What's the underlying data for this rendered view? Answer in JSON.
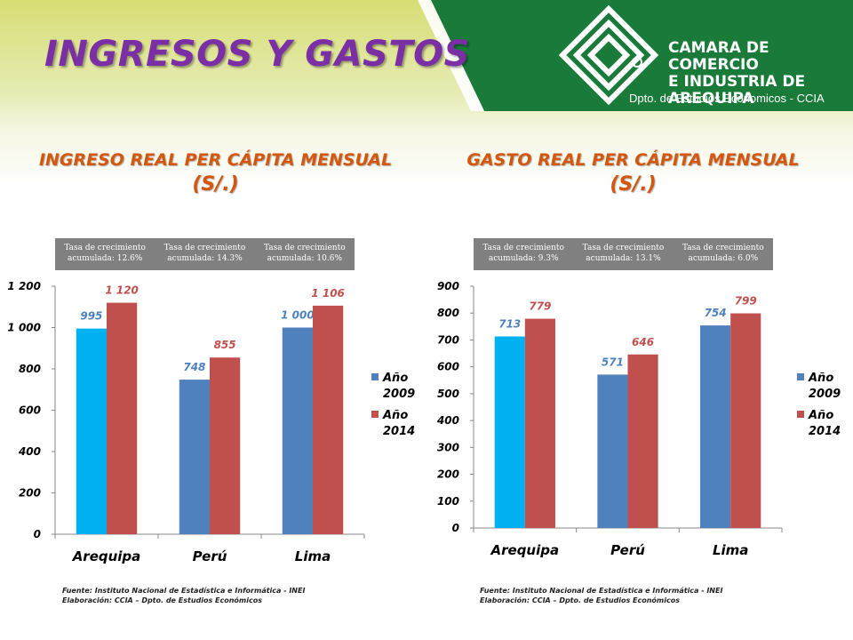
{
  "header": {
    "title": "INGRESOS Y GASTOS",
    "logo_line1": "CAMARA DE COMERCIO",
    "logo_line2": "E INDUSTRIA DE",
    "logo_line3": "AREQUIPA",
    "logo_sub": "Dpto. de Estudios Economicos - CCIA"
  },
  "colors": {
    "title": "#7b2fa5",
    "chart_title": "#d4570d",
    "arequipa": "#00b0f0",
    "year2009": "#4f81bd",
    "year2014": "#c0504d",
    "green": "#1a7a3a"
  },
  "charts": [
    {
      "title": "INGRESO REAL PER CÁPITA MENSUAL",
      "unit": "(S/.)",
      "rates": [
        "Tasa de crecimiento acumulada: 12.6%",
        "Tasa de crecimiento acumulada: 14.3%",
        "Tasa de crecimiento acumulada: 10.6%"
      ],
      "source_line1": "Fuente: Instituto Nacional de Estadística e Informática - INEI",
      "source_line2": "Elaboración: CCIA – Dpto. de Estudios Económicos"
    },
    {
      "title": "GASTO REAL PER CÁPITA MENSUAL",
      "unit": "(S/.)",
      "rates": [
        "Tasa de crecimiento acumulada: 9.3%",
        "Tasa de crecimiento acumulada: 13.1%",
        "Tasa de crecimiento acumulada: 6.0%"
      ],
      "source_line1": "Fuente: Instituto Nacional de Estadística e Informática - INEI",
      "source_line2": "Elaboración: CCIA – Dpto. de Estudios Económicos"
    }
  ],
  "chart_data": [
    {
      "type": "bar",
      "title": "INGRESO REAL PER CÁPITA MENSUAL (S/.)",
      "categories": [
        "Arequipa",
        "Perú",
        "Lima"
      ],
      "series": [
        {
          "name": "Año 2009",
          "values": [
            995,
            748,
            1000
          ],
          "labels": [
            "995",
            "748",
            "1 000"
          ]
        },
        {
          "name": "Año 2014",
          "values": [
            1120,
            855,
            1106
          ],
          "labels": [
            "1 120",
            "855",
            "1 106"
          ]
        }
      ],
      "ylim": [
        0,
        1200
      ],
      "yticks": [
        "0",
        "200",
        "400",
        "600",
        "800",
        "1 000",
        "1 200"
      ],
      "legend": "right",
      "grid": false
    },
    {
      "type": "bar",
      "title": "GASTO REAL PER CÁPITA MENSUAL (S/.)",
      "categories": [
        "Arequipa",
        "Perú",
        "Lima"
      ],
      "series": [
        {
          "name": "Año 2009",
          "values": [
            713,
            571,
            754
          ],
          "labels": [
            "713",
            "571",
            "754"
          ]
        },
        {
          "name": "Año 2014",
          "values": [
            779,
            646,
            799
          ],
          "labels": [
            "779",
            "646",
            "799"
          ]
        }
      ],
      "ylim": [
        0,
        900
      ],
      "yticks": [
        "0",
        "100",
        "200",
        "300",
        "400",
        "500",
        "600",
        "700",
        "800",
        "900"
      ],
      "legend": "right",
      "grid": false
    }
  ]
}
